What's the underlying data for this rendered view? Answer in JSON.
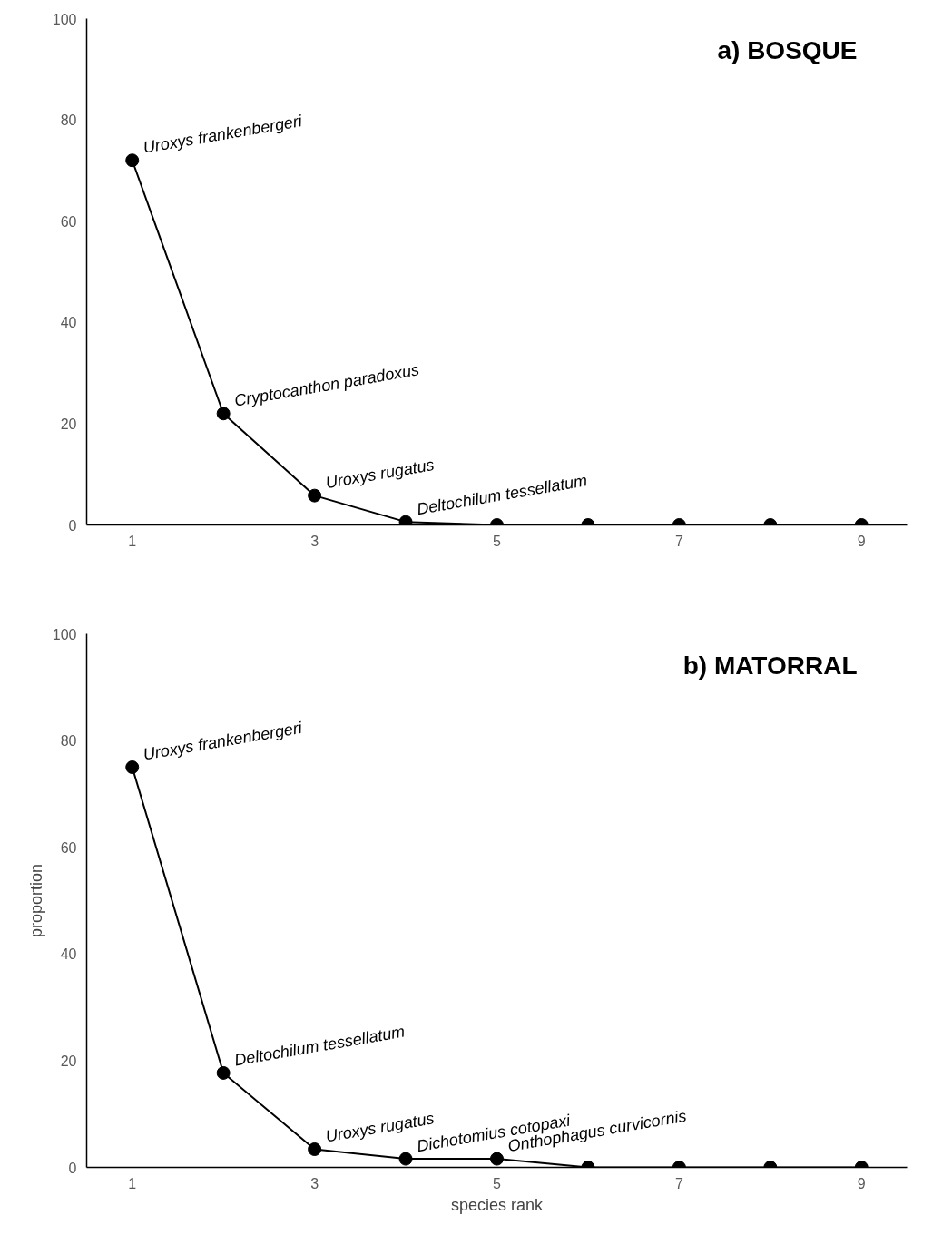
{
  "chart_data": [
    {
      "type": "line",
      "title": "a) BOSQUE",
      "x": [
        1,
        2,
        3,
        4,
        5,
        6,
        7,
        8,
        9
      ],
      "values": [
        72,
        22,
        5.8,
        0.6,
        0,
        0,
        0,
        0,
        0
      ],
      "color": "#000000",
      "marker": "circle",
      "line_style": "solid",
      "xlim": [
        0.5,
        9.5
      ],
      "ylim": [
        0,
        100
      ],
      "xticks": [
        1,
        3,
        5,
        7,
        9
      ],
      "yticks": [
        0,
        20,
        40,
        60,
        80,
        100
      ],
      "grid": false,
      "annotations": [
        {
          "text": "Uroxys frankenbergeri",
          "x": 1,
          "y": 72
        },
        {
          "text": "Cryptocanthon paradoxus",
          "x": 2,
          "y": 22
        },
        {
          "text": "Uroxys rugatus",
          "x": 3,
          "y": 5.8
        },
        {
          "text": "Deltochilum tessellatum",
          "x": 4,
          "y": 0.6
        }
      ]
    },
    {
      "type": "line",
      "title": "b) MATORRAL",
      "xlabel": "species rank",
      "ylabel": "proportion",
      "x": [
        1,
        2,
        3,
        4,
        5,
        6,
        7,
        8,
        9
      ],
      "values": [
        75,
        17.7,
        3.4,
        1.6,
        1.6,
        0,
        0,
        0,
        0
      ],
      "color": "#000000",
      "marker": "circle",
      "line_style": "solid",
      "xlim": [
        0.5,
        9.5
      ],
      "ylim": [
        0,
        100
      ],
      "xticks": [
        1,
        3,
        5,
        7,
        9
      ],
      "yticks": [
        0,
        20,
        40,
        60,
        80,
        100
      ],
      "grid": false,
      "annotations": [
        {
          "text": "Uroxys frankenbergeri",
          "x": 1,
          "y": 75
        },
        {
          "text": "Deltochilum tessellatum",
          "x": 2,
          "y": 17.7
        },
        {
          "text": "Uroxys rugatus",
          "x": 3,
          "y": 3.4
        },
        {
          "text": "Dichotomius cotopaxi",
          "x": 4,
          "y": 1.6
        },
        {
          "text": "Onthophagus curvicornis",
          "x": 5,
          "y": 1.6
        }
      ]
    }
  ]
}
